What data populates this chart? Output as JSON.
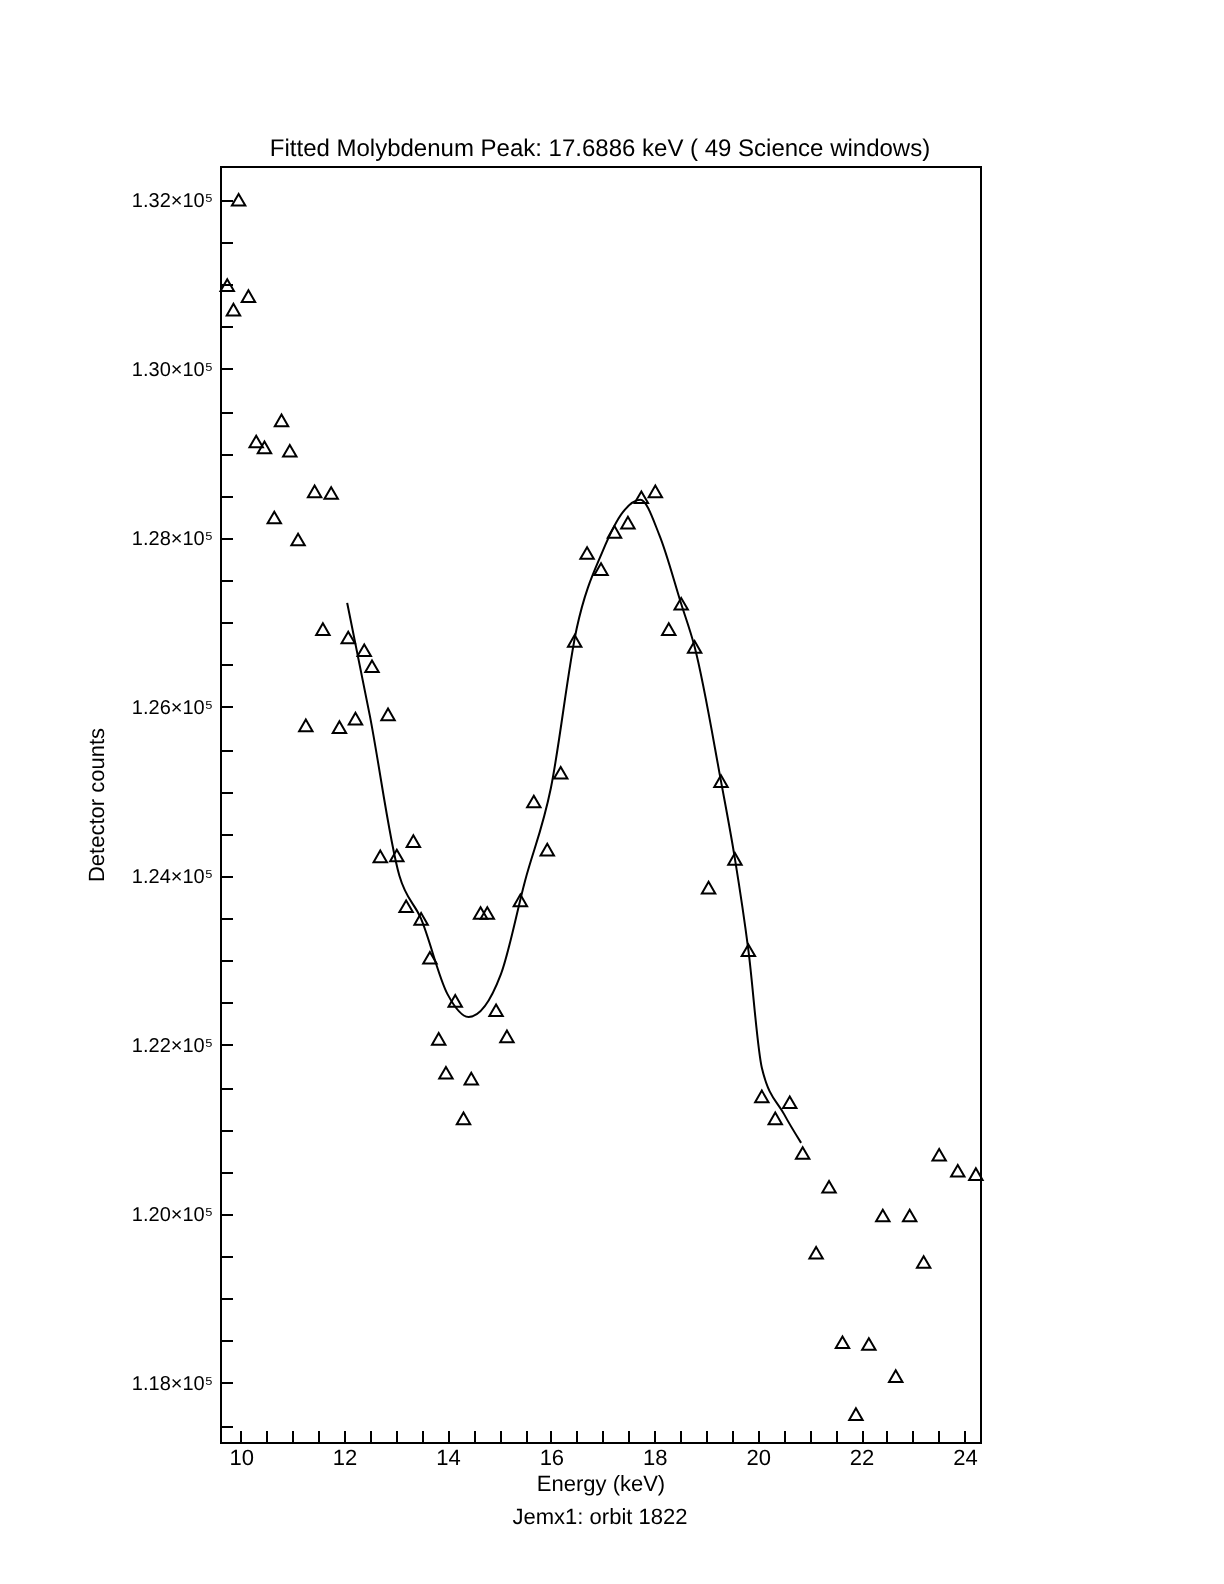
{
  "chart_data": {
    "type": "scatter",
    "title": "Fitted Molybdenum Peak: 17.6886 keV ( 49 Science windows)",
    "xlabel": "Energy (keV)",
    "ylabel": "Detector counts",
    "annotations": [
      "Jemx1: orbit 1822"
    ],
    "xlim": [
      9.6,
      24.3
    ],
    "ylim": [
      117300,
      132400
    ],
    "xticks": [
      10,
      {
        "value": 10.5,
        "label": null
      },
      {
        "value": 11,
        "label": null
      },
      {
        "value": 11.5,
        "label": null
      },
      12,
      {
        "value": 12.5,
        "label": null
      },
      {
        "value": 13,
        "label": null
      },
      {
        "value": 13.5,
        "label": null
      },
      14,
      {
        "value": 14.5,
        "label": null
      },
      {
        "value": 15,
        "label": null
      },
      {
        "value": 15.5,
        "label": null
      },
      16,
      {
        "value": 16.5,
        "label": null
      },
      {
        "value": 17,
        "label": null
      },
      {
        "value": 17.5,
        "label": null
      },
      18,
      {
        "value": 18.5,
        "label": null
      },
      {
        "value": 19,
        "label": null
      },
      {
        "value": 19.5,
        "label": null
      },
      20,
      {
        "value": 20.5,
        "label": null
      },
      {
        "value": 21,
        "label": null
      },
      {
        "value": 21.5,
        "label": null
      },
      22,
      {
        "value": 22.5,
        "label": null
      },
      {
        "value": 23,
        "label": null
      },
      {
        "value": 23.5,
        "label": null
      },
      24
    ],
    "yticks": [
      {
        "value": 117500,
        "label": null
      },
      {
        "value": 118000,
        "label": "1.18×10⁵"
      },
      {
        "value": 118500,
        "label": null
      },
      {
        "value": 119000,
        "label": null
      },
      {
        "value": 119500,
        "label": null
      },
      {
        "value": 120000,
        "label": "1.20×10⁵"
      },
      {
        "value": 120500,
        "label": null
      },
      {
        "value": 121000,
        "label": null
      },
      {
        "value": 121500,
        "label": null
      },
      {
        "value": 122000,
        "label": "1.22×10⁵"
      },
      {
        "value": 122500,
        "label": null
      },
      {
        "value": 123000,
        "label": null
      },
      {
        "value": 123500,
        "label": null
      },
      {
        "value": 124000,
        "label": "1.24×10⁵"
      },
      {
        "value": 124500,
        "label": null
      },
      {
        "value": 125000,
        "label": null
      },
      {
        "value": 125500,
        "label": null
      },
      {
        "value": 126000,
        "label": "1.26×10⁵"
      },
      {
        "value": 126500,
        "label": null
      },
      {
        "value": 127000,
        "label": null
      },
      {
        "value": 127500,
        "label": null
      },
      {
        "value": 128000,
        "label": "1.28×10⁵"
      },
      {
        "value": 128500,
        "label": null
      },
      {
        "value": 129000,
        "label": null
      },
      {
        "value": 129500,
        "label": null
      },
      {
        "value": 130000,
        "label": "1.30×10⁵"
      },
      {
        "value": 130500,
        "label": null
      },
      {
        "value": 131000,
        "label": null
      },
      {
        "value": 131500,
        "label": null
      },
      {
        "value": 132000,
        "label": "1.32×10⁵"
      }
    ],
    "marker": "triangle",
    "series": [
      {
        "type": "scatter",
        "color": "#000000",
        "x": [
          9.74,
          9.86,
          9.96,
          10.15,
          10.3,
          10.46,
          10.65,
          10.79,
          10.95,
          11.11,
          11.26,
          11.43,
          11.59,
          11.75,
          11.91,
          12.08,
          12.22,
          12.39,
          12.54,
          12.7,
          12.85,
          13.02,
          13.2,
          13.34,
          13.49,
          13.66,
          13.83,
          13.97,
          14.15,
          14.31,
          14.46,
          14.64,
          14.77,
          14.94,
          15.15,
          15.41,
          15.67,
          15.93,
          16.19,
          16.46,
          16.7,
          16.97,
          17.23,
          17.49,
          17.75,
          18.02,
          18.28,
          18.52,
          18.78,
          19.05,
          19.29,
          19.56,
          19.82,
          20.08,
          20.34,
          20.62,
          20.87,
          21.13,
          21.38,
          21.64,
          21.9,
          22.15,
          22.42,
          22.67,
          22.94,
          23.21,
          23.51,
          23.87,
          24.22
        ],
        "values": [
          130990,
          130700,
          132000,
          130860,
          129140,
          129070,
          128240,
          129390,
          129030,
          127980,
          125780,
          128550,
          126920,
          128530,
          125760,
          126820,
          125860,
          126670,
          126480,
          124230,
          125910,
          124240,
          123640,
          124410,
          123490,
          123030,
          122070,
          121670,
          122520,
          121130,
          121600,
          123560,
          123560,
          122410,
          122100,
          123710,
          124880,
          124310,
          125220,
          126780,
          127820,
          127630,
          128070,
          128180,
          128480,
          128550,
          126920,
          127220,
          126710,
          123860,
          125120,
          124200,
          123120,
          121390,
          121130,
          121320,
          120720,
          119540,
          120320,
          118480,
          117630,
          118460,
          119980,
          118080,
          119980,
          119430,
          120700,
          120510,
          120470
        ]
      },
      {
        "type": "line",
        "color": "#000000",
        "marker": "none",
        "line_style": "solid",
        "x": [
          12.06,
          12.5,
          13.07,
          13.49,
          14.0,
          14.41,
          15.03,
          15.5,
          16.0,
          16.5,
          17.0,
          17.4,
          17.73,
          18.1,
          18.52,
          18.78,
          19.29,
          19.56,
          19.82,
          20.08,
          20.51,
          20.84
        ],
        "values": [
          127230,
          125890,
          124000,
          123490,
          122600,
          122330,
          122830,
          123940,
          125040,
          126930,
          127840,
          128310,
          128450,
          128030,
          127220,
          126710,
          125120,
          124200,
          123120,
          121730,
          121180,
          120840
        ]
      }
    ]
  }
}
